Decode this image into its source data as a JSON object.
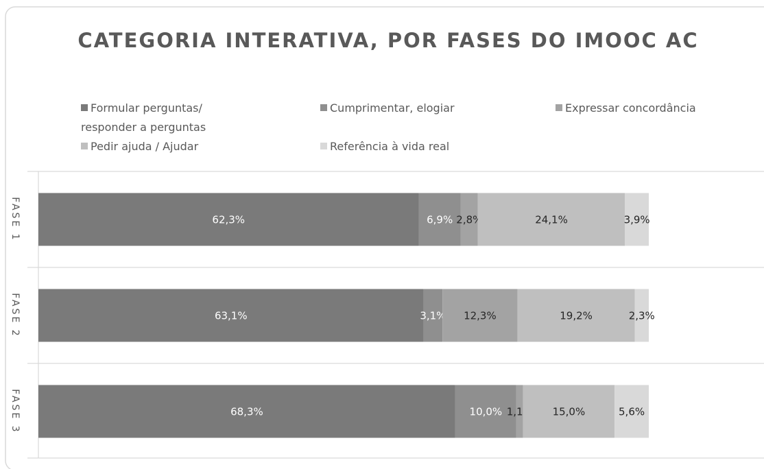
{
  "chart_data": {
    "type": "stacked-bar-horizontal",
    "title": "CATEGORIA INTERATIVA, POR FASES DO IMOOC AC",
    "categories": [
      "FASE 1",
      "FASE 2",
      "FASE 3"
    ],
    "series": [
      {
        "name": "Formular perguntas/ responder a perguntas",
        "color": "#7a7a7a",
        "values": [
          62.3,
          63.1,
          68.3
        ],
        "value_labels": [
          "62,3%",
          "63,1%",
          "68,3%"
        ]
      },
      {
        "name": "Cumprimentar, elogiar",
        "color": "#8f8f8f",
        "values": [
          6.9,
          3.1,
          10.0
        ],
        "value_labels": [
          "6,9%",
          "3,1%",
          "10,0%"
        ]
      },
      {
        "name": "Expressar concordância",
        "color": "#a3a3a3",
        "values": [
          2.8,
          12.3,
          1.1
        ],
        "value_labels": [
          "2,8%",
          "12,3%",
          "1,1%"
        ]
      },
      {
        "name": "Pedir ajuda / Ajudar",
        "color": "#bfbfbf",
        "values": [
          24.1,
          19.2,
          15.0
        ],
        "value_labels": [
          "24,1%",
          "19,2%",
          "15,0%"
        ]
      },
      {
        "name": "Referência à vida real",
        "color": "#d9d9d9",
        "values": [
          3.9,
          2.3,
          5.6
        ],
        "value_labels": [
          "3,9%",
          "2,3%",
          "5,6%"
        ]
      }
    ],
    "legend": "top"
  }
}
